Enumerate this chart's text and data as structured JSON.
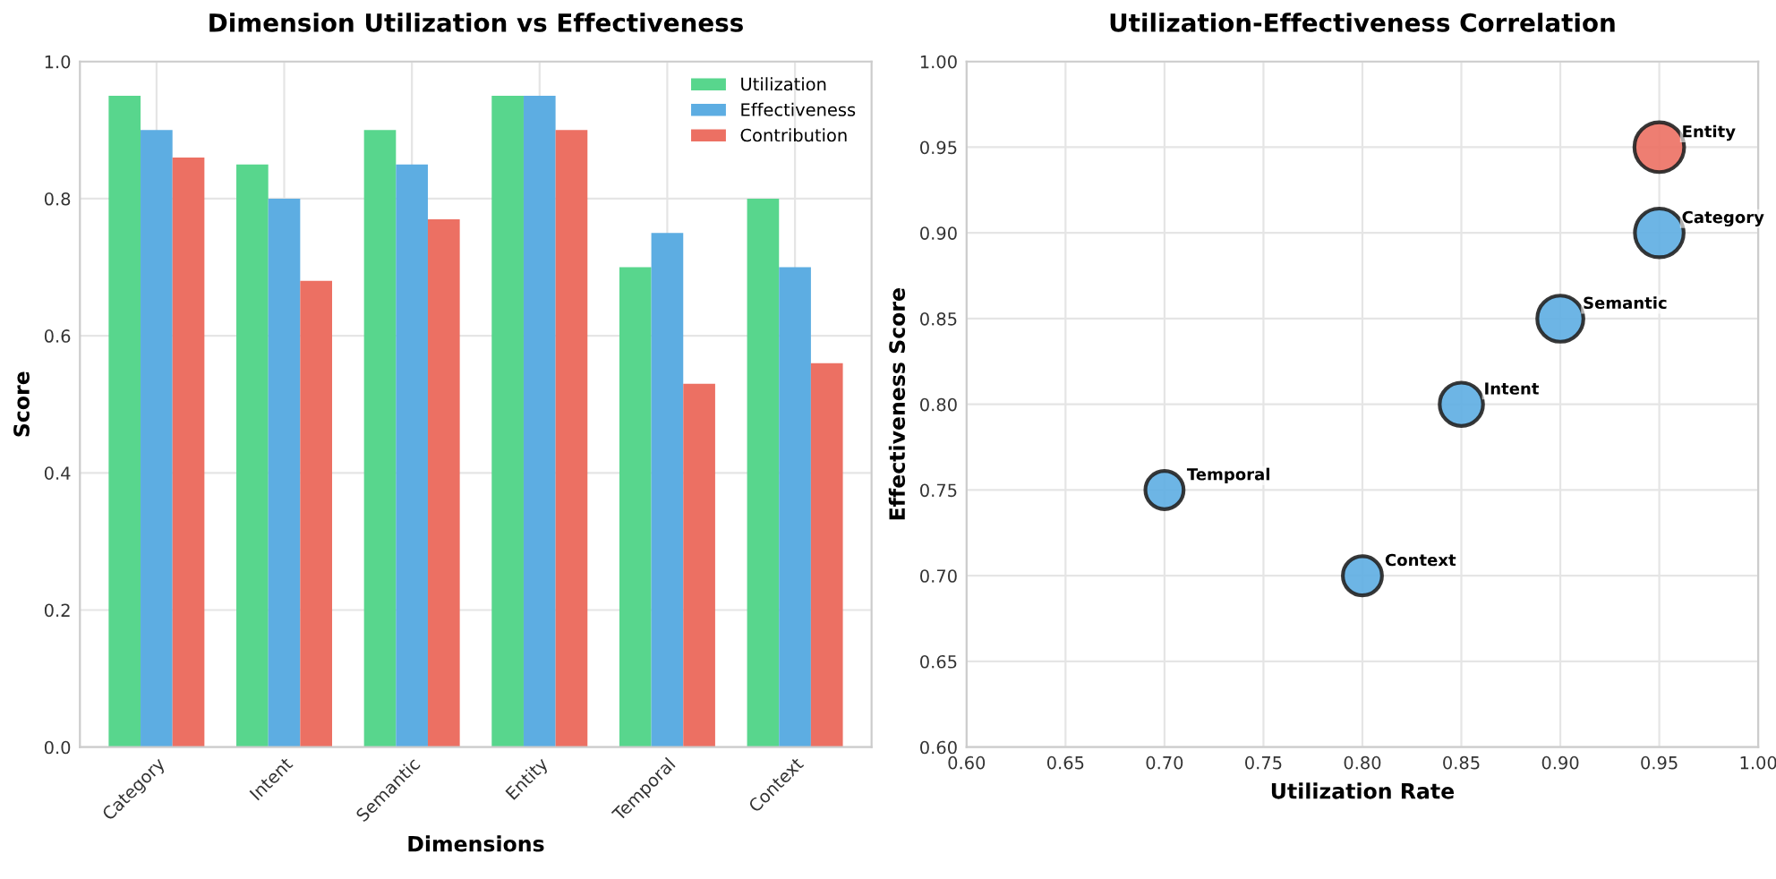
{
  "chart_data": [
    {
      "type": "bar",
      "title": "Dimension Utilization vs Effectiveness",
      "xlabel": "Dimensions",
      "ylabel": "Score",
      "categories": [
        "Category",
        "Intent",
        "Semantic",
        "Entity",
        "Temporal",
        "Context"
      ],
      "series": [
        {
          "name": "Utilization",
          "color": "#58d68d",
          "values": [
            0.95,
            0.85,
            0.9,
            0.95,
            0.7,
            0.8
          ]
        },
        {
          "name": "Effectiveness",
          "color": "#5dade2",
          "values": [
            0.9,
            0.8,
            0.85,
            0.95,
            0.75,
            0.7
          ]
        },
        {
          "name": "Contribution",
          "color": "#ec7063",
          "values": [
            0.86,
            0.68,
            0.77,
            0.9,
            0.53,
            0.56
          ]
        }
      ],
      "ylim": [
        0,
        1.0
      ],
      "yticks": [
        {
          "value": 0,
          "label": "0.0"
        },
        0.2,
        0.4,
        0.6,
        0.8,
        {
          "value": 1,
          "label": "1.0"
        }
      ],
      "grid": true,
      "legend": "top right"
    },
    {
      "type": "bubble",
      "title": "Utilization-Effectiveness Correlation",
      "xlabel": "Utilization Rate",
      "ylabel": "Effectiveness Score",
      "x": [
        0.95,
        0.85,
        0.9,
        0.95,
        0.7,
        0.8
      ],
      "values": [
        0.9,
        0.8,
        0.85,
        0.95,
        0.75,
        0.7
      ],
      "sizes": [
        0.96,
        0.76,
        0.86,
        1,
        0.59,
        0.62
      ],
      "colors": [
        "#5dade2",
        "#5dade2",
        "#5dade2",
        "#ec7063",
        "#5dade2",
        "#5dade2"
      ],
      "annotations": [
        {
          "text": "Category",
          "x": 0.95,
          "y": 0.9
        },
        {
          "text": "Intent",
          "x": 0.85,
          "y": 0.8
        },
        {
          "text": "Semantic",
          "x": 0.9,
          "y": 0.85
        },
        {
          "text": "Entity",
          "x": 0.95,
          "y": 0.95
        },
        {
          "text": "Temporal",
          "x": 0.7,
          "y": 0.75
        },
        {
          "text": "Context",
          "x": 0.8,
          "y": 0.7
        }
      ],
      "xlim": [
        0.6,
        1.0
      ],
      "xticks": [
        {
          "value": 0.6,
          "label": "0.60"
        },
        0.65,
        {
          "value": 0.7,
          "label": "0.70"
        },
        0.75,
        {
          "value": 0.8,
          "label": "0.80"
        },
        0.85,
        {
          "value": 0.9,
          "label": "0.90"
        },
        0.95,
        {
          "value": 1.0,
          "label": "1.00"
        }
      ],
      "ylim": [
        0.6,
        1.0
      ],
      "yticks": [
        {
          "value": 0.6,
          "label": "0.60"
        },
        0.65,
        {
          "value": 0.7,
          "label": "0.70"
        },
        0.75,
        {
          "value": 0.8,
          "label": "0.80"
        },
        0.85,
        {
          "value": 0.9,
          "label": "0.90"
        },
        0.95,
        {
          "value": 1.0,
          "label": "1.00"
        }
      ],
      "grid": true
    }
  ]
}
